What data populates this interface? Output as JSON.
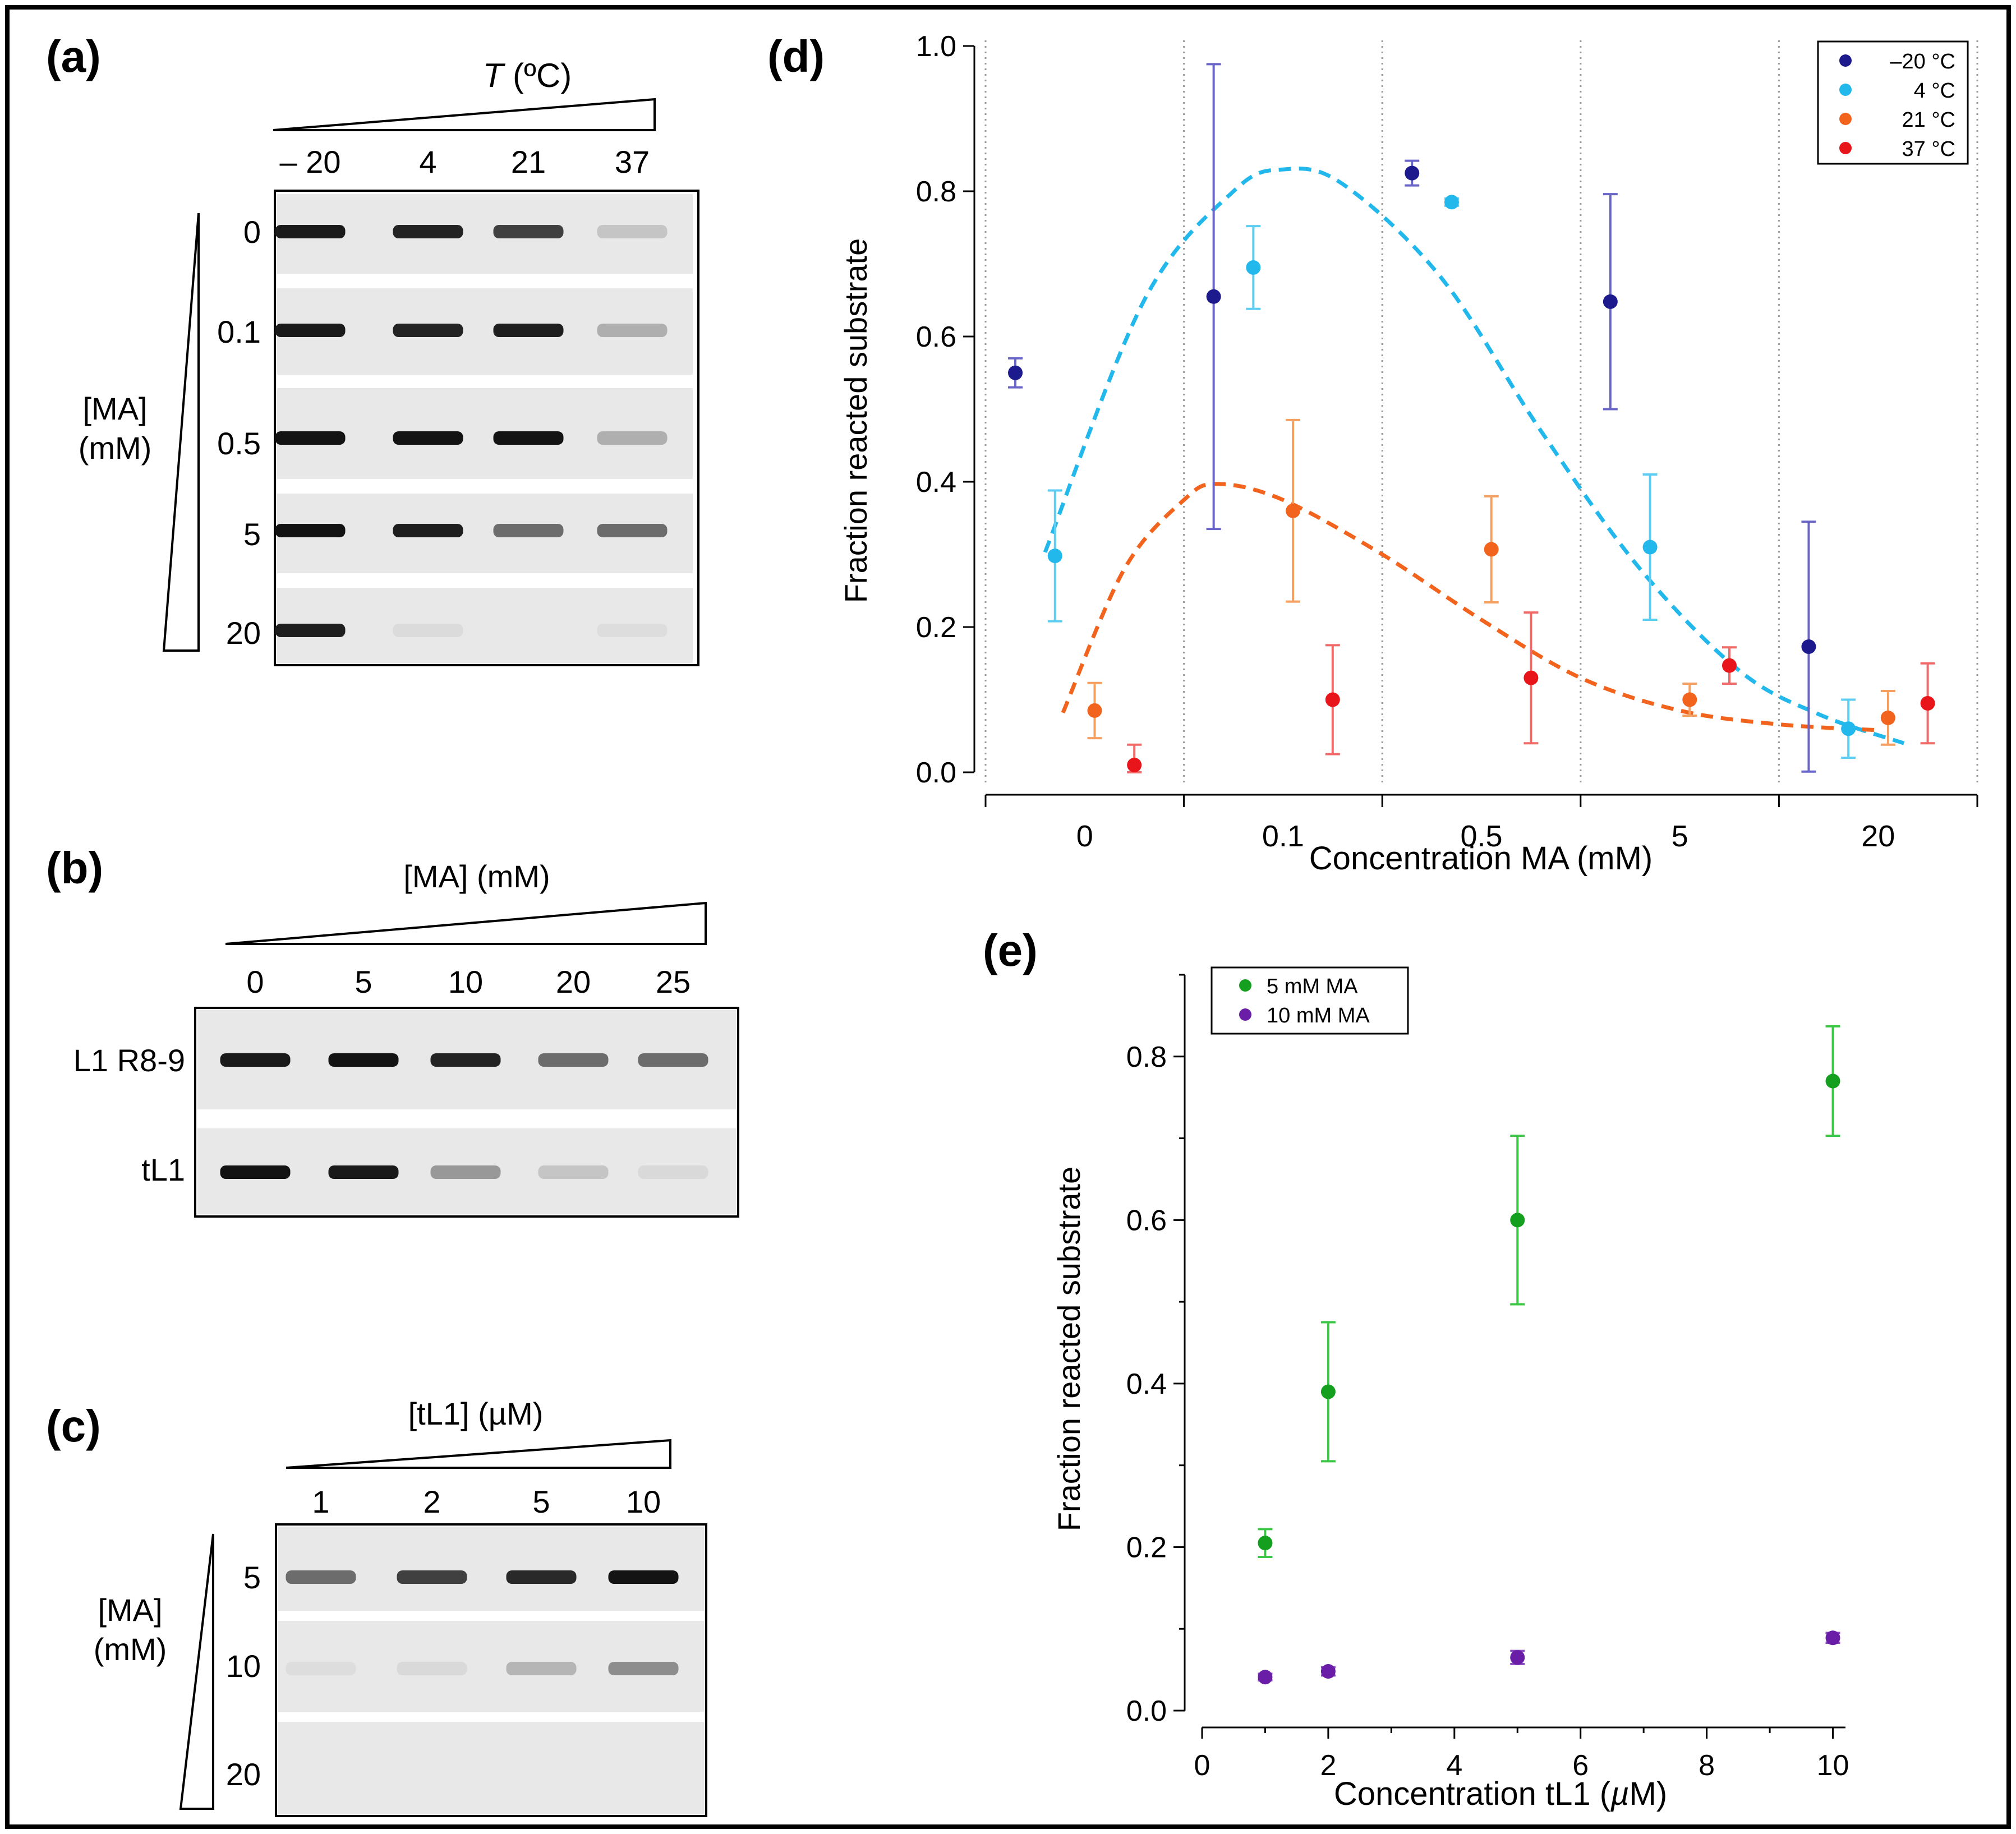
{
  "panels": {
    "a": {
      "label": "(a)",
      "temp_header_italic": "T",
      "temp_header_rest": " (ºC)",
      "temp_lanes": [
        "– 20",
        "4",
        "21",
        "37"
      ],
      "ma_label_line1": "[MA]",
      "ma_label_line2": "(mM)",
      "ma_rows": [
        "0",
        "0.1",
        "0.5",
        "5",
        "20"
      ],
      "band_intensity": [
        [
          0.92,
          0.88,
          0.75,
          0.15
        ],
        [
          0.92,
          0.88,
          0.9,
          0.25
        ],
        [
          0.95,
          0.95,
          0.95,
          0.25
        ],
        [
          0.95,
          0.9,
          0.55,
          0.55
        ],
        [
          0.9,
          0.05,
          0.0,
          0.04
        ]
      ]
    },
    "b": {
      "label": "(b)",
      "ma_header": "[MA] (mM)",
      "ma_lanes": [
        "0",
        "5",
        "10",
        "20",
        "25"
      ],
      "rows": [
        "L1 R8-9",
        "tL1"
      ],
      "band_intensity": [
        [
          0.92,
          0.95,
          0.88,
          0.55,
          0.55
        ],
        [
          0.95,
          0.92,
          0.35,
          0.15,
          0.06
        ]
      ]
    },
    "c": {
      "label": "(c)",
      "tl1_header": "[tL1] (µM)",
      "tl1_lanes": [
        "1",
        "2",
        "5",
        "10"
      ],
      "ma_label_line1": "[MA]",
      "ma_label_line2": "(mM)",
      "ma_rows": [
        "5",
        "10",
        "20"
      ],
      "band_intensity": [
        [
          0.55,
          0.75,
          0.85,
          0.95
        ],
        [
          0.04,
          0.06,
          0.22,
          0.4
        ],
        [
          0.0,
          0.0,
          0.0,
          0.0
        ]
      ]
    },
    "d": {
      "label": "(d)"
    },
    "e": {
      "label": "(e)"
    }
  },
  "chart_data": [
    {
      "id": "d",
      "type": "scatter",
      "title": "",
      "xlabel": "Concentration MA (mM)",
      "ylabel": "Fraction reacted substrate",
      "categories": [
        "0",
        "0.1",
        "0.5",
        "5",
        "20"
      ],
      "ylim": [
        0,
        1.0
      ],
      "yticks": [
        "0.0",
        "0.2",
        "0.4",
        "0.6",
        "0.8",
        "1.0"
      ],
      "grid": "vertical dotted category separators",
      "legend": "top-right",
      "series": [
        {
          "name": "–20 °C",
          "color": "#1c1a8c",
          "err_color": "#6a66c8",
          "values": [
            0.55,
            0.655,
            0.825,
            0.648,
            0.173
          ],
          "errors": [
            0.02,
            0.32,
            0.017,
            0.148,
            0.172
          ]
        },
        {
          "name": "4 °C",
          "color": "#22b8ec",
          "err_color": "#5ecdf2",
          "values": [
            0.298,
            0.695,
            0.785,
            0.31,
            0.06
          ],
          "errors": [
            0.09,
            0.057,
            0.005,
            0.1,
            0.04
          ]
        },
        {
          "name": "21 °C",
          "color": "#f2641e",
          "err_color": "#f5a060",
          "values": [
            0.085,
            0.36,
            0.307,
            0.1,
            0.075
          ],
          "errors": [
            0.038,
            0.125,
            0.073,
            0.022,
            0.037
          ]
        },
        {
          "name": "37 °C",
          "color": "#e8161a",
          "err_color": "#f06a6a",
          "values": [
            0.01,
            0.1,
            0.13,
            0.147,
            0.095
          ],
          "errors": [
            0.028,
            0.075,
            0.09,
            0.025,
            0.055
          ]
        }
      ],
      "fits": [
        {
          "series": "4 °C",
          "style": "dashed",
          "color": "#22b8ec",
          "points": [
            [
              -0.2,
              0.303
            ],
            [
              0.3,
              0.65
            ],
            [
              0.75,
              0.8
            ],
            [
              1.0,
              0.83
            ],
            [
              1.3,
              0.81
            ],
            [
              1.8,
              0.68
            ],
            [
              2.3,
              0.47
            ],
            [
              2.8,
              0.28
            ],
            [
              3.3,
              0.14
            ],
            [
              3.7,
              0.08
            ],
            [
              4.13,
              0.04
            ]
          ]
        },
        {
          "series": "21 °C",
          "style": "dashed",
          "color": "#f2641e",
          "points": [
            [
              -0.11,
              0.082
            ],
            [
              0.2,
              0.28
            ],
            [
              0.5,
              0.375
            ],
            [
              0.67,
              0.397
            ],
            [
              1.0,
              0.375
            ],
            [
              1.5,
              0.3
            ],
            [
              2.0,
              0.21
            ],
            [
              2.5,
              0.13
            ],
            [
              3.0,
              0.085
            ],
            [
              3.5,
              0.066
            ],
            [
              4.0,
              0.058
            ]
          ]
        }
      ]
    },
    {
      "id": "e",
      "type": "scatter",
      "title": "",
      "xlabel": "Concentration tL1 (µM)",
      "xlabel_prefix": "Concentration tL1 (",
      "xlabel_unit_italic": "µ",
      "xlabel_suffix": "M)",
      "ylabel": "Fraction reacted substrate",
      "xlim": [
        0,
        10.2
      ],
      "ylim": [
        0,
        0.9
      ],
      "xticks": [
        "0",
        "2",
        "4",
        "6",
        "8",
        "10"
      ],
      "yticks": [
        "0.0",
        "0.2",
        "0.4",
        "0.6",
        "0.8"
      ],
      "legend": "top-left",
      "series": [
        {
          "name": "5 mM MA",
          "color": "#14a01e",
          "err_color": "#3cc846",
          "x": [
            1,
            2,
            5,
            10
          ],
          "values": [
            0.205,
            0.39,
            0.6,
            0.77
          ],
          "errors": [
            0.017,
            0.085,
            0.103,
            0.067
          ]
        },
        {
          "name": "10 mM MA",
          "color": "#6a1ea8",
          "err_color": "#8a4ac0",
          "x": [
            1,
            2,
            5,
            10
          ],
          "values": [
            0.041,
            0.048,
            0.065,
            0.089
          ],
          "errors": [
            0.004,
            0.005,
            0.008,
            0.006
          ]
        }
      ]
    }
  ]
}
